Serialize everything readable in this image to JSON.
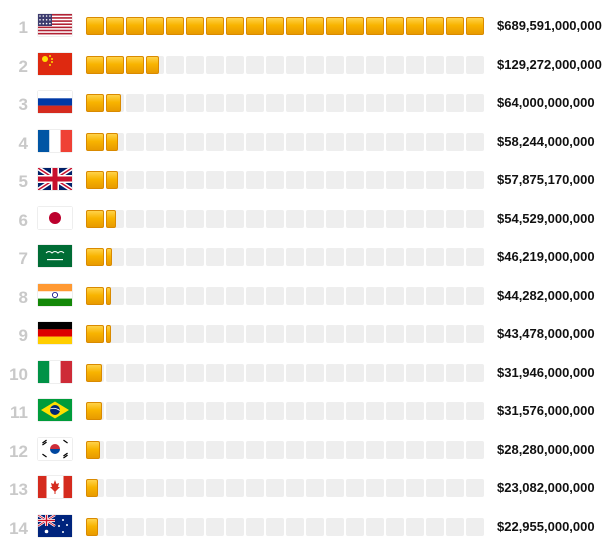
{
  "chart_data": {
    "type": "bar",
    "orientation": "horizontal",
    "grid": false,
    "legend": "none",
    "value_format": "currency",
    "ranks": [
      "1",
      "2",
      "3",
      "4",
      "5",
      "6",
      "7",
      "8",
      "9",
      "10",
      "11",
      "12",
      "13",
      "14"
    ],
    "categories": [
      "United States",
      "China",
      "Russia",
      "France",
      "United Kingdom",
      "Japan",
      "Saudi Arabia",
      "India",
      "Germany",
      "Italy",
      "Brazil",
      "South Korea",
      "Canada",
      "Australia"
    ],
    "flags": [
      "us-flag-icon",
      "china-flag-icon",
      "russia-flag-icon",
      "france-flag-icon",
      "uk-flag-icon",
      "japan-flag-icon",
      "saudi-arabia-flag-icon",
      "india-flag-icon",
      "germany-flag-icon",
      "italy-flag-icon",
      "brazil-flag-icon",
      "south-korea-flag-icon",
      "canada-flag-icon",
      "australia-flag-icon"
    ],
    "values": [
      689591000000,
      129272000000,
      64000000000,
      58244000000,
      57875170000,
      54529000000,
      46219000000,
      44282000000,
      43478000000,
      31946000000,
      31576000000,
      28280000000,
      23082000000,
      22955000000
    ],
    "value_labels": [
      "$689,591,000,000",
      "$129,272,000,000",
      "$64,000,000,000",
      "$58,244,000,000",
      "$57,875,170,000",
      "$54,529,000,000",
      "$46,219,000,000",
      "$44,282,000,000",
      "$43,478,000,000",
      "$31,946,000,000",
      "$31,576,000,000",
      "$28,280,000,000",
      "$23,082,000,000",
      "$22,955,000,000"
    ],
    "xlim": [
      0,
      689591000000
    ]
  },
  "colors": {
    "bar_fill": "#f8b400",
    "bar_track": "#eeeeee",
    "rank_text": "#c9c9c9",
    "value_text": "#111111"
  }
}
